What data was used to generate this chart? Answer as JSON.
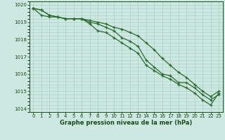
{
  "x": [
    0,
    1,
    2,
    3,
    4,
    5,
    6,
    7,
    8,
    9,
    10,
    11,
    12,
    13,
    14,
    15,
    16,
    17,
    18,
    19,
    20,
    21,
    22,
    23
  ],
  "line1": [
    1019.8,
    1019.7,
    1019.4,
    1019.3,
    1019.2,
    1019.2,
    1019.2,
    1018.9,
    1018.5,
    1018.4,
    1018.1,
    1017.8,
    1017.5,
    1017.2,
    1016.5,
    1016.2,
    1015.9,
    1015.7,
    1015.4,
    1015.2,
    1014.9,
    1014.5,
    1014.2,
    1014.9
  ],
  "line2": [
    1019.8,
    1019.7,
    1019.4,
    1019.3,
    1019.2,
    1019.2,
    1019.2,
    1019.0,
    1018.9,
    1018.7,
    1018.5,
    1018.1,
    1017.9,
    1017.6,
    1016.8,
    1016.4,
    1016.0,
    1015.9,
    1015.5,
    1015.5,
    1015.2,
    1014.8,
    1014.5,
    1014.8
  ],
  "line3": [
    1019.8,
    1019.4,
    1019.3,
    1019.3,
    1019.2,
    1019.2,
    1019.2,
    1019.1,
    1019.0,
    1018.9,
    1018.7,
    1018.6,
    1018.4,
    1018.2,
    1017.8,
    1017.4,
    1016.9,
    1016.5,
    1016.1,
    1015.8,
    1015.4,
    1015.0,
    1014.7,
    1015.0
  ],
  "line_color": "#2d6a2d",
  "bg_color": "#cce8e0",
  "grid_color": "#aad0c8",
  "text_color": "#1a4a1a",
  "xlabel": "Graphe pression niveau de la mer (hPa)",
  "ylim": [
    1013.8,
    1020.2
  ],
  "xlim": [
    -0.5,
    23.5
  ],
  "yticks": [
    1014,
    1015,
    1016,
    1017,
    1018,
    1019,
    1020
  ],
  "xticks": [
    0,
    1,
    2,
    3,
    4,
    5,
    6,
    7,
    8,
    9,
    10,
    11,
    12,
    13,
    14,
    15,
    16,
    17,
    18,
    19,
    20,
    21,
    22,
    23
  ]
}
